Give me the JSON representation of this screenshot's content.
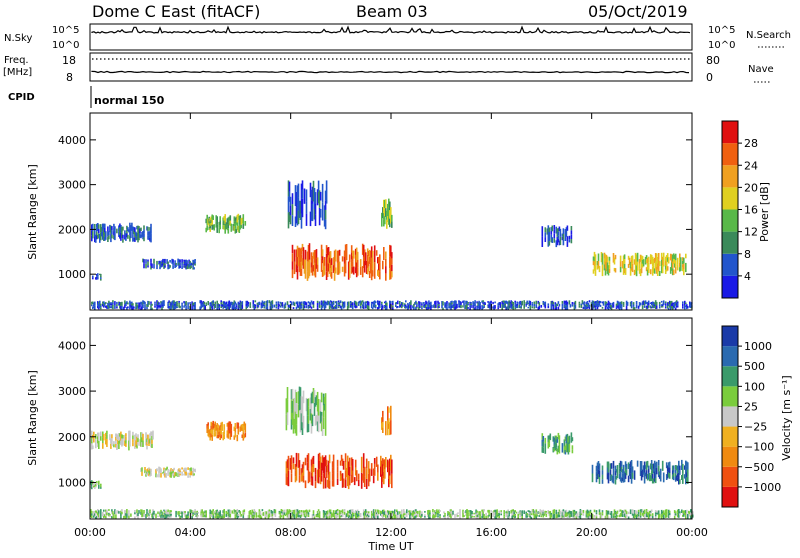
{
  "header": {
    "station": "Dome C East (fitACF)",
    "beam": "Beam 03",
    "date": "05/Oct/2019"
  },
  "status_panels": {
    "nsky_label": "N.Sky",
    "nsky_ticks_left": [
      "10^5",
      "10^0"
    ],
    "nsky_ticks_right": [
      "10^5",
      "10^0"
    ],
    "nsearch_label": "N.Search",
    "freq_label": "Freq.",
    "freq_unit": "[MHz]",
    "freq_ticks": [
      "18",
      "8"
    ],
    "nave_label": "Nave",
    "nave_ticks": [
      "80",
      "0"
    ],
    "cpid_label": "CPID",
    "cpid_value": "normal 150"
  },
  "colors": {
    "power": [
      "#1a1ae6",
      "#2255cc",
      "#3a8a5a",
      "#58b848",
      "#e0d020",
      "#f0a020",
      "#f06010",
      "#e01010"
    ],
    "velocity": [
      "#e01010",
      "#f05010",
      "#f08a10",
      "#f0b020",
      "#c8c8c8",
      "#7acc3c",
      "#3a9a6a",
      "#2a6ab0",
      "#1a3aa8"
    ],
    "axis": "#000000"
  },
  "chart_data": [
    {
      "type": "heatmap",
      "panel": "power",
      "xlabel": "",
      "ylabel": "Slant Range [km]",
      "x_ticks": [
        "00:00",
        "04:00",
        "08:00",
        "12:00",
        "16:00",
        "20:00",
        "00:00"
      ],
      "y_ticks": [
        "1000",
        "2000",
        "3000",
        "4000"
      ],
      "xlim_hours": [
        0,
        24
      ],
      "ylim_km": [
        200,
        4600
      ],
      "colorbar": {
        "label": "Power [dB]",
        "ticks": [
          "4",
          "8",
          "12",
          "16",
          "20",
          "24",
          "28"
        ]
      },
      "regions": [
        {
          "t0": 8.0,
          "t1": 12.0,
          "r0": 850,
          "r1": 1700,
          "level": 6
        },
        {
          "t0": 20.0,
          "t1": 23.8,
          "r0": 950,
          "r1": 1500,
          "level": 4
        },
        {
          "t0": 0.0,
          "t1": 0.4,
          "r0": 850,
          "r1": 1050,
          "level": 1
        },
        {
          "t0": 0.0,
          "t1": 2.5,
          "r0": 1700,
          "r1": 2150,
          "level": 1
        },
        {
          "t0": 2.0,
          "t1": 4.2,
          "r0": 1100,
          "r1": 1350,
          "level": 1
        },
        {
          "t0": 4.6,
          "t1": 6.2,
          "r0": 1900,
          "r1": 2350,
          "level": 3
        },
        {
          "t0": 7.8,
          "t1": 9.4,
          "r0": 2000,
          "r1": 3100,
          "level": 1
        },
        {
          "t0": 11.6,
          "t1": 12.0,
          "r0": 2000,
          "r1": 2700,
          "level": 3
        },
        {
          "t0": 18.0,
          "t1": 19.2,
          "r0": 1600,
          "r1": 2100,
          "level": 1
        },
        {
          "t0": 0.0,
          "t1": 24.0,
          "r0": 200,
          "r1": 420,
          "level": 1
        }
      ]
    },
    {
      "type": "heatmap",
      "panel": "velocity",
      "xlabel": "Time UT",
      "ylabel": "Slant Range [km]",
      "x_ticks": [
        "00:00",
        "04:00",
        "08:00",
        "12:00",
        "16:00",
        "20:00",
        "00:00"
      ],
      "y_ticks": [
        "1000",
        "2000",
        "3000",
        "4000"
      ],
      "xlim_hours": [
        0,
        24
      ],
      "ylim_km": [
        200,
        4600
      ],
      "colorbar": {
        "label": "Velocity [m s⁻¹]",
        "ticks": [
          "1000",
          "500",
          "100",
          "25",
          "−25",
          "−100",
          "−500",
          "−1000"
        ]
      },
      "regions": [
        {
          "t0": 7.8,
          "t1": 12.0,
          "r0": 850,
          "r1": 1650,
          "level": 1
        },
        {
          "t0": 20.0,
          "t1": 23.8,
          "r0": 950,
          "r1": 1500,
          "level": 7
        },
        {
          "t0": 0.0,
          "t1": 0.4,
          "r0": 850,
          "r1": 1050,
          "level": 5
        },
        {
          "t0": 0.0,
          "t1": 2.5,
          "r0": 1700,
          "r1": 2150,
          "level": 4
        },
        {
          "t0": 2.0,
          "t1": 4.2,
          "r0": 1100,
          "r1": 1350,
          "level": 4
        },
        {
          "t0": 4.6,
          "t1": 6.2,
          "r0": 1900,
          "r1": 2350,
          "level": 2
        },
        {
          "t0": 7.8,
          "t1": 9.4,
          "r0": 2000,
          "r1": 3100,
          "level": 5
        },
        {
          "t0": 11.6,
          "t1": 12.0,
          "r0": 2000,
          "r1": 2700,
          "level": 2
        },
        {
          "t0": 18.0,
          "t1": 19.2,
          "r0": 1600,
          "r1": 2100,
          "level": 6
        },
        {
          "t0": 0.0,
          "t1": 24.0,
          "r0": 200,
          "r1": 420,
          "level": 5
        }
      ]
    }
  ]
}
